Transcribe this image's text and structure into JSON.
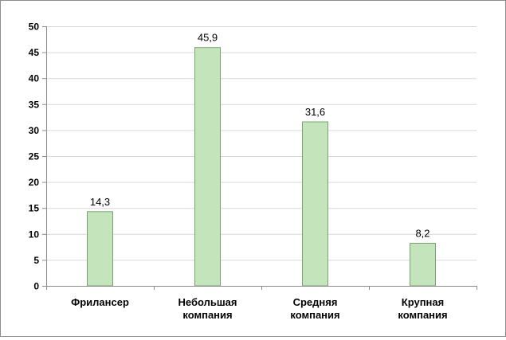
{
  "chart_data": {
    "type": "bar",
    "categories": [
      [
        "Фрилансер"
      ],
      [
        "Небольшая",
        "компания"
      ],
      [
        "Средняя",
        "компания"
      ],
      [
        "Крупная",
        "компания"
      ]
    ],
    "values": [
      14.3,
      45.9,
      31.6,
      8.2
    ],
    "value_labels": [
      "14,3",
      "45,9",
      "31,6",
      "8,2"
    ],
    "ylim": [
      0,
      50
    ],
    "yticks": [
      0,
      5,
      10,
      15,
      20,
      25,
      30,
      35,
      40,
      45,
      50
    ],
    "grid": true,
    "legend": "none",
    "title": "",
    "xlabel": "",
    "ylabel": "",
    "colors": {
      "bar_fill": "#c4e5bc",
      "bar_stroke": "#7aa373",
      "grid": "#d9d9d9",
      "axis": "#8c8c8c"
    }
  }
}
